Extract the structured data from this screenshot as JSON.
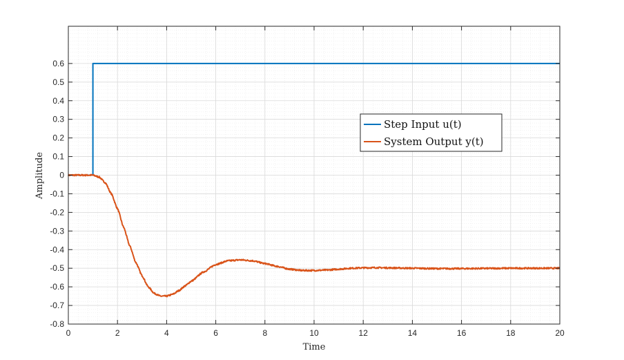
{
  "chart_data": {
    "type": "line",
    "xlabel": "Time",
    "ylabel": "Amplitude",
    "xlim": [
      0,
      20
    ],
    "ylim": [
      -0.8,
      0.8
    ],
    "xticks": [
      0,
      2,
      4,
      6,
      8,
      10,
      12,
      14,
      16,
      18,
      20
    ],
    "yticks": [
      -0.8,
      -0.7,
      -0.6,
      -0.5,
      -0.4,
      -0.3,
      -0.2,
      -0.1,
      0,
      0.1,
      0.2,
      0.3,
      0.4,
      0.5,
      0.6
    ],
    "xtick_labels": [
      "0",
      "2",
      "4",
      "6",
      "8",
      "10",
      "12",
      "14",
      "16",
      "18",
      "20"
    ],
    "ytick_labels": [
      "-0.8",
      "-0.7",
      "-0.6",
      "-0.5",
      "-0.4",
      "-0.3",
      "-0.2",
      "-0.1",
      "0",
      "0.1",
      "0.2",
      "0.3",
      "0.4",
      "0.5",
      "0.6"
    ],
    "grid": true,
    "minor_grid": true,
    "legend_position": "right-center",
    "series": [
      {
        "name": "Step Input u(t)",
        "color": "#0072BD",
        "x": [
          0,
          1.0,
          1.0,
          20
        ],
        "y": [
          0,
          0,
          0.6,
          0.6
        ]
      },
      {
        "name": "System Output y(t)",
        "color": "#D95319",
        "x": [
          0,
          0.5,
          1.0,
          1.25,
          1.5,
          1.75,
          2.0,
          2.25,
          2.5,
          2.75,
          3.0,
          3.25,
          3.5,
          3.75,
          4.0,
          4.25,
          4.5,
          4.75,
          5.0,
          5.5,
          6.0,
          6.5,
          7.0,
          7.5,
          8.0,
          8.5,
          9.0,
          9.5,
          10.0,
          10.5,
          11.0,
          11.5,
          12.0,
          12.5,
          13.0,
          14.0,
          15.0,
          16.0,
          17.0,
          18.0,
          19.0,
          20.0
        ],
        "y": [
          0,
          0,
          0,
          -0.01,
          -0.04,
          -0.1,
          -0.18,
          -0.28,
          -0.38,
          -0.47,
          -0.54,
          -0.6,
          -0.635,
          -0.65,
          -0.65,
          -0.64,
          -0.62,
          -0.595,
          -0.57,
          -0.52,
          -0.48,
          -0.46,
          -0.455,
          -0.46,
          -0.475,
          -0.49,
          -0.505,
          -0.512,
          -0.512,
          -0.51,
          -0.505,
          -0.5,
          -0.498,
          -0.497,
          -0.498,
          -0.5,
          -0.502,
          -0.502,
          -0.501,
          -0.5,
          -0.5,
          -0.5
        ]
      }
    ]
  }
}
